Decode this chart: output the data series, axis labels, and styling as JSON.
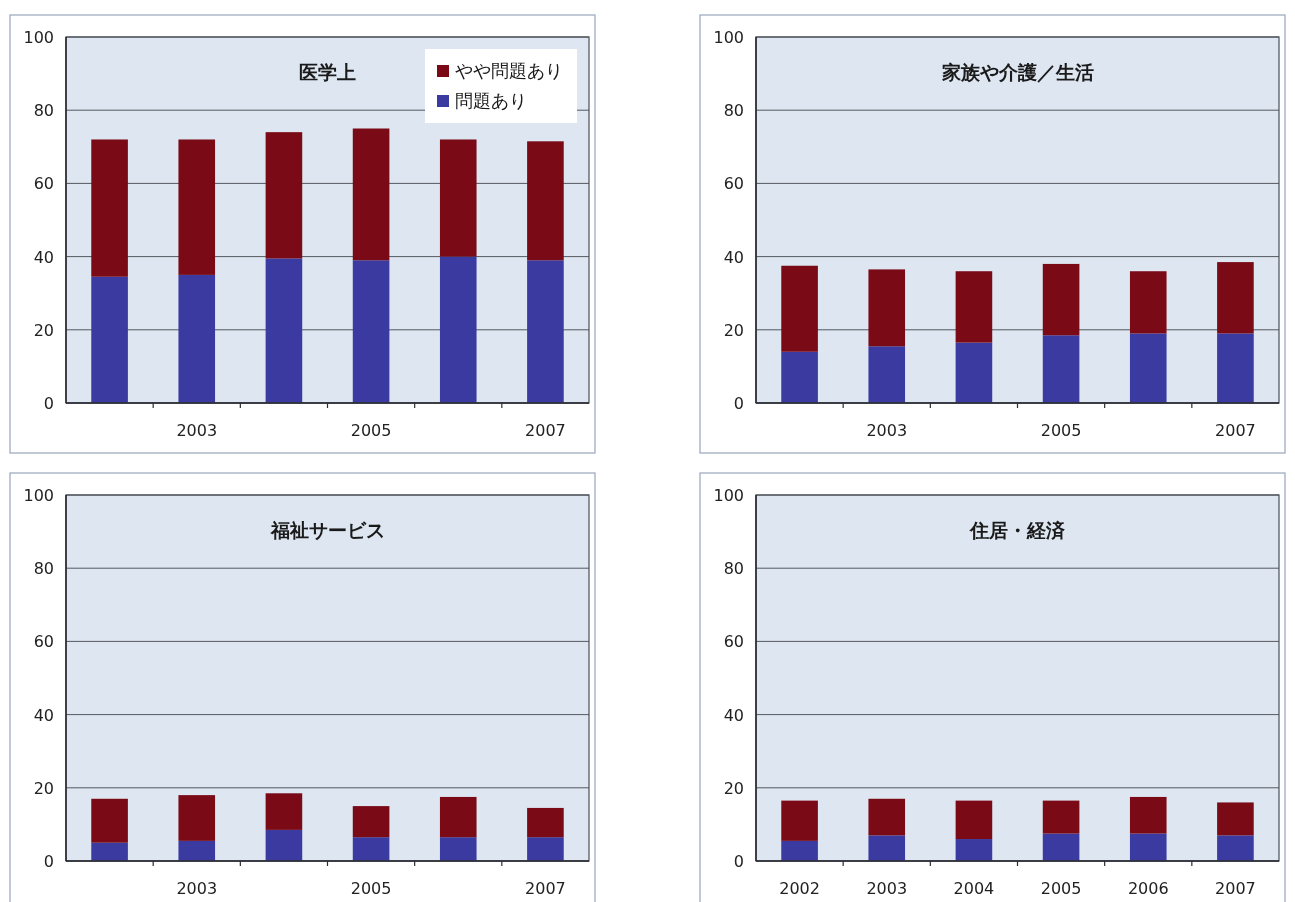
{
  "chart_data": [
    {
      "type": "bar",
      "title": "医学上",
      "categories": [
        null,
        "2003",
        null,
        "2005",
        null,
        "2007"
      ],
      "stacked": true,
      "ylim": [
        0,
        100
      ],
      "yticks": [
        0,
        20,
        40,
        60,
        80,
        100
      ],
      "grid": "y",
      "legend": "top right",
      "series": [
        {
          "name": "問題あり",
          "color": "#3b3aa0",
          "values": [
            34.5,
            35,
            39.5,
            39,
            40,
            39
          ]
        },
        {
          "name": "やや問題あり",
          "color": "#7a0a16",
          "values": [
            37.5,
            37,
            34.5,
            36,
            32,
            32.5
          ]
        }
      ]
    },
    {
      "type": "bar",
      "title": "家族や介護／生活",
      "categories": [
        null,
        "2003",
        null,
        "2005",
        null,
        "2007"
      ],
      "stacked": true,
      "ylim": [
        0,
        100
      ],
      "yticks": [
        0,
        20,
        40,
        60,
        80,
        100
      ],
      "grid": "y",
      "series": [
        {
          "color": "#3b3aa0",
          "values": [
            14,
            15.5,
            16.5,
            18.5,
            19,
            19
          ]
        },
        {
          "color": "#7a0a16",
          "values": [
            23.5,
            21,
            19.5,
            19.5,
            17,
            19.5
          ]
        }
      ]
    },
    {
      "type": "bar",
      "title": "福祉サービス",
      "categories": [
        null,
        "2003",
        null,
        "2005",
        null,
        "2007"
      ],
      "stacked": true,
      "ylim": [
        0,
        100
      ],
      "yticks": [
        0,
        20,
        40,
        60,
        80,
        100
      ],
      "grid": "y",
      "series": [
        {
          "color": "#3b3aa0",
          "values": [
            5,
            5.5,
            8.5,
            6.5,
            6.5,
            6.5
          ]
        },
        {
          "color": "#7a0a16",
          "values": [
            12,
            12.5,
            10,
            8.5,
            11,
            8
          ]
        }
      ]
    },
    {
      "type": "bar",
      "title": "住居・経済",
      "categories": [
        "2002",
        "2003",
        "2004",
        "2005",
        "2006",
        "2007"
      ],
      "stacked": true,
      "ylim": [
        0,
        100
      ],
      "yticks": [
        0,
        20,
        40,
        60,
        80,
        100
      ],
      "grid": "y",
      "series": [
        {
          "color": "#3b3aa0",
          "values": [
            5.5,
            7,
            6,
            7.5,
            7.5,
            7
          ]
        },
        {
          "color": "#7a0a16",
          "values": [
            11,
            10,
            10.5,
            9,
            10,
            9
          ]
        }
      ]
    }
  ]
}
